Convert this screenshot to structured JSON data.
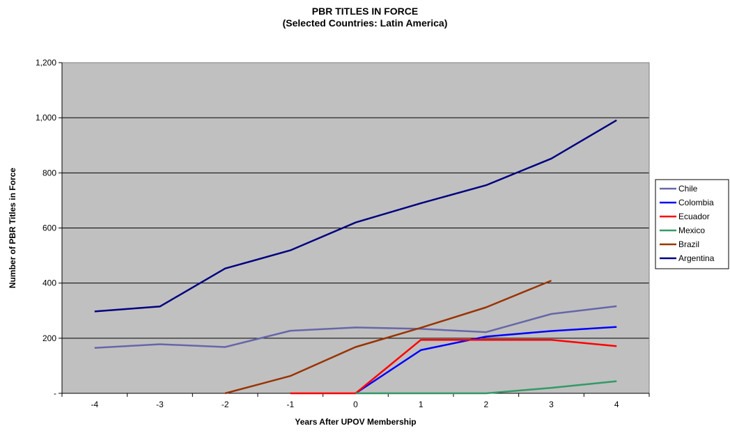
{
  "chart_data": {
    "type": "line",
    "title": "PBR TITLES IN FORCE",
    "subtitle": "(Selected Countries:  Latin America)",
    "xlabel": "Years After UPOV Membership",
    "ylabel": "Number of PBR Titles in Force",
    "x": [
      -4,
      -3,
      -2,
      -1,
      0,
      1,
      2,
      3,
      4
    ],
    "x_tick_labels": [
      "-4",
      "-3",
      "-2",
      "-1",
      "0",
      "1",
      "2",
      "3",
      "4"
    ],
    "y_ticks": [
      0,
      200,
      400,
      600,
      800,
      1000,
      1200
    ],
    "y_tick_labels": [
      "-",
      "200",
      "400",
      "600",
      "800",
      "1,000",
      "1,200"
    ],
    "ylim": [
      0,
      1200
    ],
    "grid": "horizontal",
    "plot_background": "#c0c0c0",
    "legend_position": "right",
    "series": [
      {
        "name": "Chile",
        "color": "#6666aa",
        "values": [
          165,
          178,
          168,
          227,
          239,
          234,
          222,
          288,
          316
        ]
      },
      {
        "name": "Colombia",
        "color": "#0000ff",
        "values": [
          null,
          null,
          null,
          null,
          0,
          157,
          206,
          226,
          241
        ]
      },
      {
        "name": "Ecuador",
        "color": "#ff0000",
        "values": [
          null,
          null,
          null,
          0,
          0,
          194,
          194,
          194,
          171
        ]
      },
      {
        "name": "Mexico",
        "color": "#339966",
        "values": [
          null,
          null,
          null,
          null,
          0,
          0,
          0,
          20,
          44
        ]
      },
      {
        "name": "Brazil",
        "color": "#993300",
        "values": [
          null,
          null,
          0,
          63,
          168,
          238,
          312,
          409,
          null
        ]
      },
      {
        "name": "Argentina",
        "color": "#000080",
        "values": [
          297,
          315,
          453,
          519,
          620,
          690,
          755,
          852,
          991
        ]
      }
    ]
  }
}
